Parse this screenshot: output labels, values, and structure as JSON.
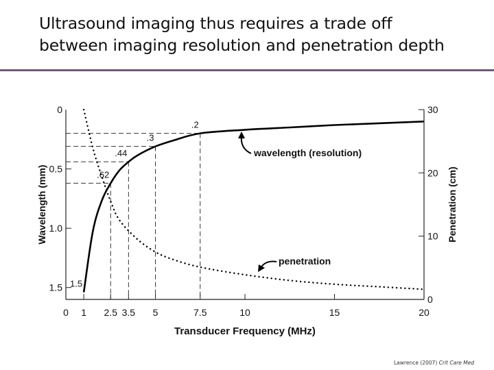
{
  "slide": {
    "title_line1": "Ultrasound imaging thus requires a trade off",
    "title_line2": "between imaging resolution and penetration depth",
    "citation_author": "Lawrence (2007)",
    "citation_journal": "Crit Care Med",
    "rule_color": "#6f5a77"
  },
  "chart_data": {
    "type": "line",
    "xlabel": "Transducer Frequency (MHz)",
    "ylabel_left": "Wavelength (mm)",
    "ylabel_right": "Penetration (cm)",
    "x_range": [
      0,
      20
    ],
    "y_left_range": [
      1.6,
      0
    ],
    "y_right_range": [
      0,
      30
    ],
    "x_ticks": [
      "0",
      "1",
      "2.5",
      "3.5",
      "5",
      "7.5",
      "10",
      "15",
      "20"
    ],
    "x_tick_values": [
      0,
      1,
      2.5,
      3.5,
      5,
      7.5,
      10,
      15,
      20
    ],
    "y_left_ticks": [
      "0",
      "0.5",
      "1.0",
      "1.5"
    ],
    "y_left_tick_values": [
      0,
      0.5,
      1.0,
      1.5
    ],
    "y_right_ticks": [
      "30",
      "20",
      "10",
      "0"
    ],
    "y_right_tick_values": [
      30,
      20,
      10,
      0
    ],
    "series": [
      {
        "annotation": "wavelength (resolution)",
        "style": "solid",
        "axis": "left",
        "x": [
          1,
          1.5,
          2,
          2.5,
          3,
          3.5,
          4,
          5,
          6,
          7.5,
          10,
          12.5,
          15,
          17.5,
          20
        ],
        "y": [
          1.54,
          1.03,
          0.77,
          0.62,
          0.51,
          0.44,
          0.385,
          0.31,
          0.26,
          0.2,
          0.17,
          0.15,
          0.13,
          0.115,
          0.1
        ]
      },
      {
        "annotation": "penetration",
        "style": "dotted",
        "axis": "right",
        "x": [
          1,
          1.5,
          2,
          2.5,
          3,
          4,
          5,
          6,
          7.5,
          10,
          12.5,
          15,
          17.5,
          20
        ],
        "y": [
          30,
          24,
          19.5,
          15.5,
          12.5,
          9.5,
          7.5,
          6.3,
          5.1,
          3.9,
          3.0,
          2.4,
          2.0,
          1.6
        ]
      }
    ],
    "point_labels": [
      {
        "text": "1.5",
        "x": 1,
        "y": 1.54
      },
      {
        "text": ".62",
        "x": 2.5,
        "y": 0.62
      },
      {
        "text": ".44",
        "x": 3.5,
        "y": 0.44
      },
      {
        "text": ".3",
        "x": 5,
        "y": 0.31
      },
      {
        "text": ".2",
        "x": 7.5,
        "y": 0.2
      }
    ],
    "reference_lines": [
      {
        "x": 2.5,
        "y": 0.62
      },
      {
        "x": 3.5,
        "y": 0.44
      },
      {
        "x": 5,
        "y": 0.31
      },
      {
        "x": 7.5,
        "y": 0.2
      }
    ],
    "grid": false,
    "legend": "none"
  }
}
